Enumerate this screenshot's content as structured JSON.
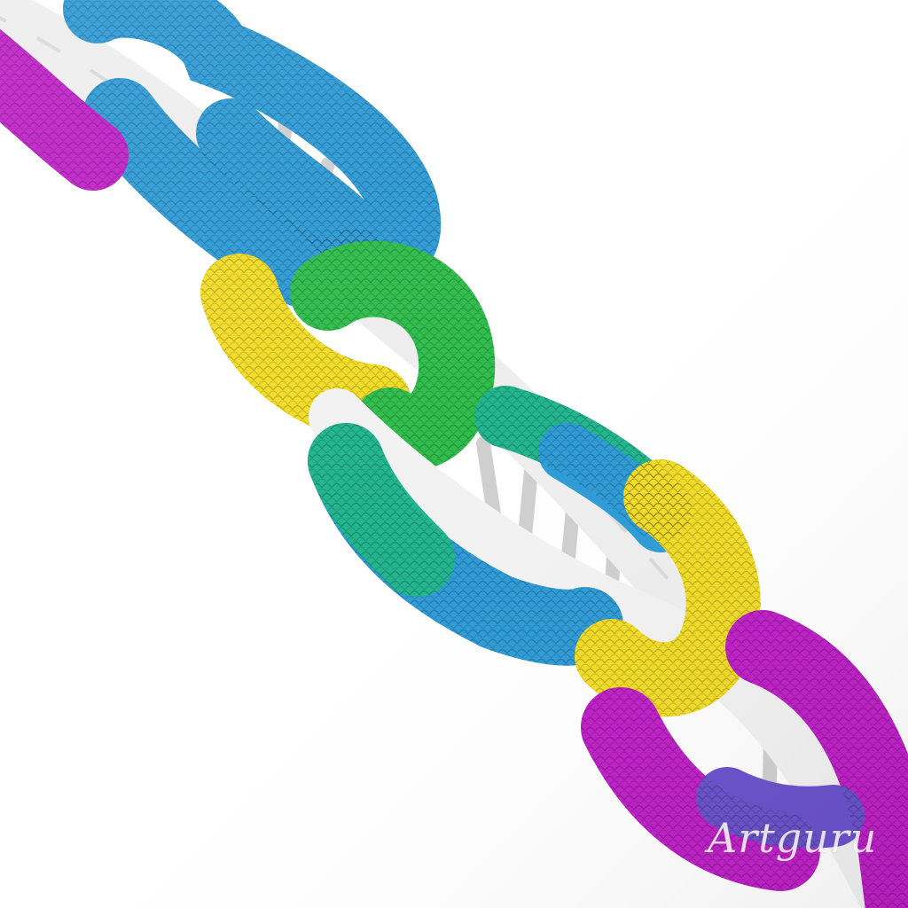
{
  "image": {
    "subject": "dna-double-helix-scaly-strands",
    "background_color": "#ffffff",
    "backbone_color": "#eeeeee",
    "rung_color": "#d4d4d4",
    "strand_colors": {
      "blue": "#2e9bd6",
      "green": "#2fbd4c",
      "teal": "#22b58e",
      "yellow": "#f2dc27",
      "magenta": "#c020c8",
      "violet": "#6a52cc"
    }
  },
  "watermark": {
    "text": "Artguru"
  }
}
